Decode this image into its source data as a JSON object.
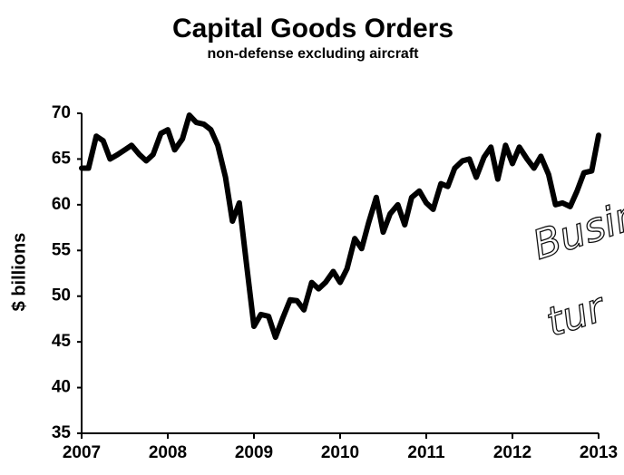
{
  "chart_data": {
    "type": "line",
    "title": "Capital Goods Orders",
    "subtitle": "non-defense excluding aircraft",
    "y_label": "$ billions",
    "annotations": [
      "Busin",
      "tur"
    ],
    "x": [
      2007,
      2007.08,
      2007.17,
      2007.25,
      2007.33,
      2007.42,
      2007.5,
      2007.58,
      2007.67,
      2007.75,
      2007.83,
      2007.92,
      2008,
      2008.08,
      2008.17,
      2008.25,
      2008.33,
      2008.42,
      2008.5,
      2008.58,
      2008.67,
      2008.75,
      2008.83,
      2008.92,
      2009,
      2009.08,
      2009.17,
      2009.25,
      2009.33,
      2009.42,
      2009.5,
      2009.58,
      2009.67,
      2009.75,
      2009.83,
      2009.92,
      2010,
      2010.08,
      2010.17,
      2010.25,
      2010.33,
      2010.42,
      2010.5,
      2010.58,
      2010.67,
      2010.75,
      2010.83,
      2010.92,
      2011,
      2011.08,
      2011.17,
      2011.25,
      2011.33,
      2011.42,
      2011.5,
      2011.58,
      2011.67,
      2011.75,
      2011.83,
      2011.92,
      2012,
      2012.08,
      2012.17,
      2012.25,
      2012.33,
      2012.42,
      2012.5,
      2012.58,
      2012.67,
      2012.75,
      2012.83,
      2012.92,
      2013
    ],
    "series": [
      {
        "name": "Capital Goods Orders",
        "color": "#000000",
        "values": [
          64,
          64,
          67.5,
          67,
          65,
          65.5,
          66,
          66.5,
          65.5,
          64.8,
          65.5,
          67.8,
          68.2,
          66,
          67.2,
          69.8,
          69,
          68.8,
          68.2,
          66.5,
          63,
          58.2,
          60.2,
          53,
          46.7,
          48,
          47.8,
          45.5,
          47.5,
          49.6,
          49.5,
          48.5,
          51.5,
          50.8,
          51.5,
          52.7,
          51.5,
          53,
          56.3,
          55.2,
          58,
          60.8,
          57,
          59,
          60,
          57.8,
          60.8,
          61.5,
          60.2,
          59.5,
          62.3,
          62,
          64,
          64.8,
          65,
          63,
          65.2,
          66.3,
          62.8,
          66.5,
          64.5,
          66.3,
          65,
          64,
          65.3,
          63.3,
          60,
          60.2,
          59.8,
          61.5,
          63.5,
          63.7,
          67.6
        ]
      }
    ],
    "xlim": [
      2007,
      2013
    ],
    "xticks": [
      2007,
      2008,
      2009,
      2010,
      2011,
      2012,
      2013
    ],
    "ylim": [
      35,
      70
    ],
    "yticks": [
      35,
      40,
      45,
      50,
      55,
      60,
      65,
      70
    ],
    "grid": false
  }
}
